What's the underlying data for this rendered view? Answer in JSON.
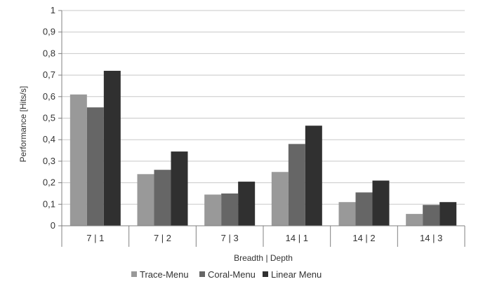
{
  "chart_data": {
    "type": "bar",
    "categories": [
      "7 | 1",
      "7 | 2",
      "7 | 3",
      "14 | 1",
      "14 | 2",
      "14 | 3"
    ],
    "series": [
      {
        "name": "Trace-Menu",
        "color": "#999999",
        "values": [
          0.61,
          0.24,
          0.145,
          0.25,
          0.11,
          0.055
        ]
      },
      {
        "name": "Coral-Menu",
        "color": "#666666",
        "values": [
          0.55,
          0.26,
          0.15,
          0.38,
          0.155,
          0.097
        ]
      },
      {
        "name": "Linear Menu",
        "color": "#303030",
        "values": [
          0.72,
          0.345,
          0.205,
          0.465,
          0.21,
          0.11
        ]
      }
    ],
    "y_ticks": [
      "0",
      "0,1",
      "0,2",
      "0,3",
      "0,4",
      "0,5",
      "0,6",
      "0,7",
      "0,8",
      "0,9",
      "1"
    ],
    "xlabel": "Breadth | Depth",
    "ylabel": "Performance [Hits/s]",
    "ylim": [
      0,
      1
    ],
    "grid": true,
    "legend_position": "bottom"
  }
}
